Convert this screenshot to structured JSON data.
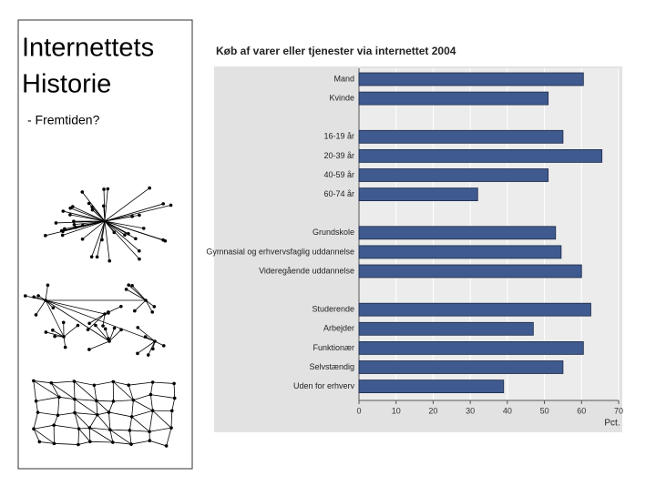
{
  "slide": {
    "title_lines": [
      "Internettets",
      "Historie"
    ],
    "subtitle": "- Fremtiden?"
  },
  "chart_data": {
    "type": "hbar",
    "title": "Køb af varer eller tjenester via internettet 2004",
    "categories": [
      "Mand",
      "Kvinde",
      null,
      "16-19 år",
      "20-39 år",
      "40-59 år",
      "60-74 år",
      null,
      "Grundskole",
      "Gymnasial og erhvervsfaglig uddannelse",
      "Videregående uddannelse",
      null,
      "Studerende",
      "Arbejder",
      "Funktionær",
      "Selvstændig",
      "Uden for erhverv"
    ],
    "values": [
      60.5,
      51,
      null,
      55,
      65.5,
      51,
      32,
      null,
      53,
      54.5,
      60,
      null,
      62.5,
      47,
      60.5,
      55,
      39
    ],
    "color": "#3f5a8f",
    "xlim": [
      0,
      70
    ],
    "xticks": [
      0,
      10,
      20,
      30,
      40,
      50,
      60,
      70
    ],
    "xlabel": "Pct.",
    "grid": true
  }
}
